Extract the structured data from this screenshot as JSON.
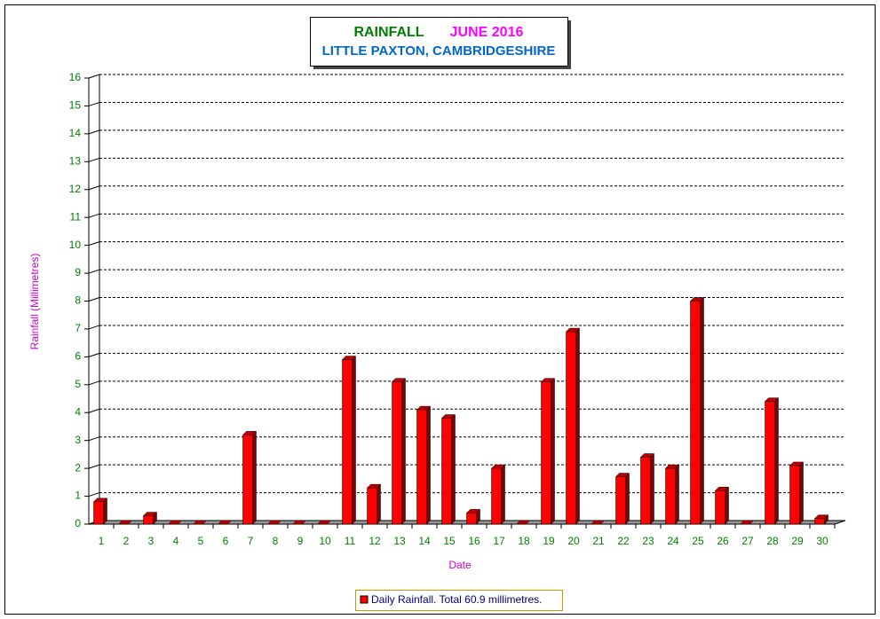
{
  "chart_data": {
    "type": "bar3d",
    "title": "RAINFALL",
    "title_color": "#008000",
    "title_date": "JUNE 2016",
    "title_date_color": "#ff00ff",
    "subtitle": "LITTLE PAXTON, CAMBRIDGESHIRE",
    "subtitle_color": "#0066cc",
    "y_label": "Rainfall  (Millimetres)",
    "x_label": "Date",
    "label_color": "#cc00cc",
    "categories": [
      "1",
      "2",
      "3",
      "4",
      "5",
      "6",
      "7",
      "8",
      "9",
      "10",
      "11",
      "12",
      "13",
      "14",
      "15",
      "16",
      "17",
      "18",
      "19",
      "20",
      "21",
      "22",
      "23",
      "24",
      "25",
      "26",
      "27",
      "28",
      "29",
      "30"
    ],
    "series": [
      {
        "name": "Daily Rainfall. Total 60.9 millimetres.",
        "color": "#ff0000",
        "values": [
          0.8,
          0,
          0.3,
          0,
          0,
          0,
          3.2,
          0,
          0,
          0,
          5.9,
          1.3,
          5.1,
          4.1,
          3.8,
          0.4,
          2.0,
          0,
          5.1,
          6.9,
          0,
          1.7,
          2.4,
          2.0,
          8.0,
          1.2,
          0,
          4.4,
          2.1,
          0.2
        ]
      }
    ],
    "ylim": [
      0,
      16
    ],
    "yticks": [
      0,
      1,
      2,
      3,
      4,
      5,
      6,
      7,
      8,
      9,
      10,
      11,
      12,
      13,
      14,
      15,
      16
    ],
    "grid": true
  }
}
